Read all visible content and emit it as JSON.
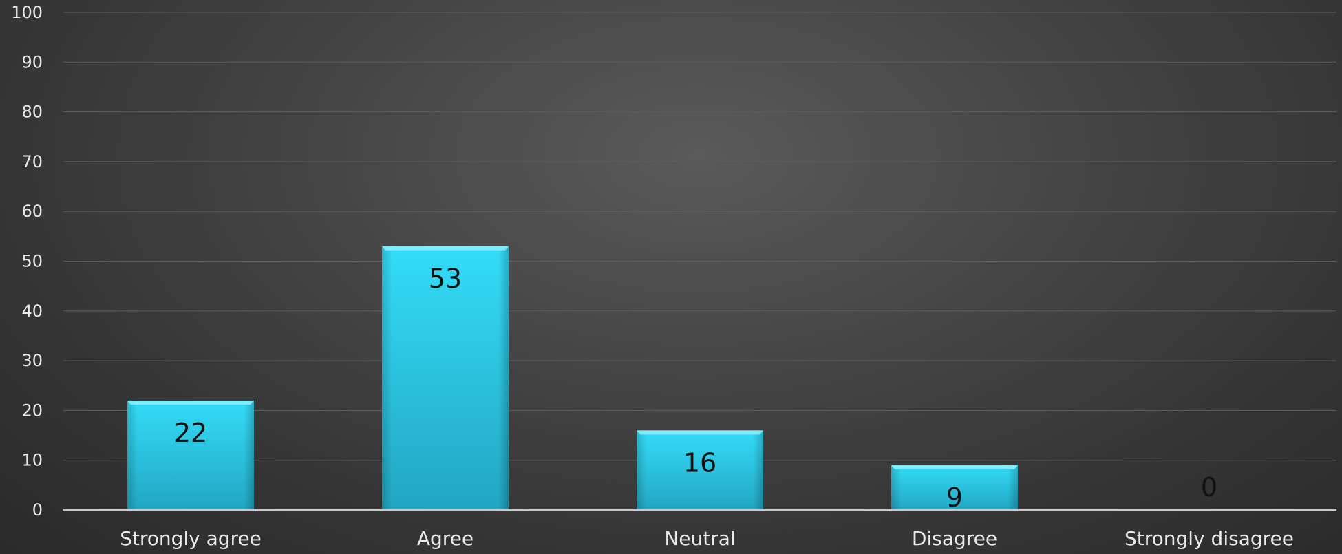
{
  "chart_data": {
    "type": "bar",
    "title": "",
    "xlabel": "",
    "ylabel": "",
    "categories": [
      "Strongly agree",
      "Agree",
      "Neutral",
      "Disagree",
      "Strongly disagree"
    ],
    "values": [
      22,
      53,
      16,
      9,
      0
    ],
    "data_labels": [
      "22",
      "53",
      "16",
      "9",
      "0"
    ],
    "ylim": [
      0,
      100
    ],
    "y_ticks": [
      0,
      10,
      20,
      30,
      40,
      50,
      60,
      70,
      80,
      90,
      100
    ],
    "y_tick_labels": [
      "0",
      "10",
      "20",
      "30",
      "40",
      "50",
      "60",
      "70",
      "80",
      "90",
      "100"
    ],
    "grid": true,
    "legend": "none"
  },
  "colors": {
    "bar_top": "#34dcf8",
    "bar_bottom": "#22a6c2",
    "bar_cap": "#8ef0ff",
    "label_text": "#111111",
    "axis_text": "#eaeaea"
  }
}
